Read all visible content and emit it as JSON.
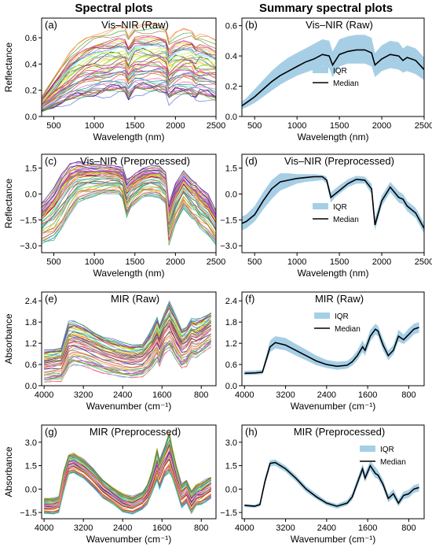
{
  "headers": {
    "left": "Spectral plots",
    "right": "Summary spectral plots"
  },
  "colors": {
    "iqr": "#a6cfe6",
    "median": "#000000"
  },
  "chart_data": [
    {
      "id": "a",
      "type": "line",
      "tag": "(a)",
      "title": "Vis–NIR (Raw)",
      "xlabel": "Wavelength (nm)",
      "ylabel": "Reflectance",
      "xlim": [
        350,
        2500
      ],
      "ylim": [
        0,
        0.75
      ],
      "xticks": [
        "500",
        "1000",
        "1500",
        "2000",
        "2500"
      ],
      "yticks": [
        "0.0",
        "0.2",
        "0.4",
        "0.6"
      ],
      "x": [
        350,
        400,
        500,
        600,
        700,
        800,
        900,
        1000,
        1100,
        1200,
        1300,
        1380,
        1420,
        1500,
        1600,
        1700,
        1800,
        1880,
        1920,
        2000,
        2100,
        2200,
        2250,
        2300,
        2400,
        2500
      ],
      "median": [
        0.08,
        0.1,
        0.14,
        0.19,
        0.24,
        0.28,
        0.31,
        0.34,
        0.37,
        0.39,
        0.41,
        0.4,
        0.33,
        0.42,
        0.44,
        0.44,
        0.44,
        0.42,
        0.35,
        0.4,
        0.42,
        0.41,
        0.38,
        0.4,
        0.38,
        0.34
      ],
      "spread_low": [
        0.03,
        0.04,
        0.06,
        0.08,
        0.1,
        0.12,
        0.13,
        0.14,
        0.15,
        0.16,
        0.17,
        0.16,
        0.11,
        0.17,
        0.17,
        0.17,
        0.17,
        0.16,
        0.1,
        0.14,
        0.15,
        0.14,
        0.12,
        0.13,
        0.12,
        0.1
      ],
      "spread_high": [
        0.15,
        0.2,
        0.3,
        0.4,
        0.5,
        0.56,
        0.6,
        0.63,
        0.65,
        0.67,
        0.69,
        0.68,
        0.62,
        0.7,
        0.71,
        0.71,
        0.7,
        0.68,
        0.6,
        0.65,
        0.67,
        0.66,
        0.62,
        0.64,
        0.62,
        0.58
      ],
      "num_spectra": 60
    },
    {
      "id": "b",
      "type": "area",
      "tag": "(b)",
      "title": "Vis–NIR (Raw)",
      "xlabel": "Wavelength (nm)",
      "ylabel": "",
      "xlim": [
        350,
        2500
      ],
      "ylim": [
        0,
        0.65
      ],
      "xticks": [
        "500",
        "1000",
        "1500",
        "2000",
        "2500"
      ],
      "yticks": [
        "0.0",
        "0.2",
        "0.4",
        "0.6"
      ],
      "legend": [
        "IQR",
        "Median"
      ],
      "legend_position": "center-left",
      "x": [
        350,
        400,
        500,
        600,
        700,
        800,
        900,
        1000,
        1100,
        1200,
        1300,
        1380,
        1420,
        1500,
        1600,
        1700,
        1800,
        1880,
        1920,
        2000,
        2100,
        2200,
        2250,
        2300,
        2400,
        2500
      ],
      "median": [
        0.07,
        0.09,
        0.13,
        0.18,
        0.23,
        0.27,
        0.3,
        0.33,
        0.36,
        0.38,
        0.41,
        0.4,
        0.34,
        0.41,
        0.43,
        0.44,
        0.44,
        0.42,
        0.34,
        0.38,
        0.41,
        0.4,
        0.37,
        0.39,
        0.37,
        0.31
      ],
      "q1": [
        0.05,
        0.06,
        0.09,
        0.13,
        0.17,
        0.21,
        0.24,
        0.27,
        0.29,
        0.31,
        0.33,
        0.32,
        0.26,
        0.33,
        0.35,
        0.35,
        0.35,
        0.33,
        0.26,
        0.3,
        0.32,
        0.31,
        0.29,
        0.3,
        0.28,
        0.24
      ],
      "q3": [
        0.1,
        0.12,
        0.18,
        0.24,
        0.3,
        0.35,
        0.39,
        0.42,
        0.45,
        0.48,
        0.51,
        0.5,
        0.43,
        0.51,
        0.53,
        0.54,
        0.54,
        0.52,
        0.42,
        0.47,
        0.5,
        0.49,
        0.45,
        0.47,
        0.45,
        0.39
      ]
    },
    {
      "id": "c",
      "type": "line",
      "tag": "(c)",
      "title": "Vis–NIR (Preprocessed)",
      "xlabel": "Wavelength (nm)",
      "ylabel": "Reflectance",
      "xlim": [
        350,
        2500
      ],
      "ylim": [
        -3.4,
        2.3
      ],
      "xticks": [
        "500",
        "1000",
        "1500",
        "2000",
        "2500"
      ],
      "yticks": [
        "−3.0",
        "−1.5",
        "0.0",
        "1.5"
      ],
      "x": [
        350,
        400,
        500,
        600,
        700,
        800,
        900,
        1000,
        1100,
        1200,
        1300,
        1350,
        1400,
        1450,
        1500,
        1600,
        1700,
        1800,
        1880,
        1920,
        2000,
        2100,
        2200,
        2250,
        2300,
        2400,
        2500
      ],
      "median": [
        -1.8,
        -1.7,
        -1.2,
        -0.5,
        0.3,
        0.7,
        0.8,
        0.9,
        0.95,
        1.0,
        1.0,
        0.8,
        -0.2,
        0.0,
        0.3,
        0.7,
        0.9,
        0.8,
        0.4,
        -1.8,
        -0.5,
        0.4,
        -0.2,
        -0.3,
        -0.8,
        -1.2,
        -2.0
      ],
      "spread_low": [
        -2.9,
        -2.8,
        -2.6,
        -2.0,
        -1.2,
        -0.5,
        -0.3,
        -0.1,
        0.0,
        0.0,
        0.0,
        -0.3,
        -1.3,
        -0.8,
        -0.6,
        -0.2,
        -0.1,
        -0.2,
        -0.6,
        -3.0,
        -1.8,
        -0.8,
        -1.4,
        -1.6,
        -2.0,
        -2.4,
        -2.9
      ],
      "spread_high": [
        -0.5,
        -0.3,
        0.3,
        1.2,
        1.8,
        1.9,
        1.8,
        1.7,
        1.7,
        1.7,
        1.6,
        1.5,
        0.8,
        1.0,
        1.2,
        1.5,
        1.6,
        1.6,
        1.3,
        -0.5,
        0.6,
        1.3,
        0.8,
        0.7,
        0.4,
        0.0,
        -1.0
      ],
      "num_spectra": 60
    },
    {
      "id": "d",
      "type": "area",
      "tag": "(d)",
      "title": "Vis–NIR (Preprocessed)",
      "xlabel": "Wavelength (nm)",
      "ylabel": "",
      "xlim": [
        350,
        2500
      ],
      "ylim": [
        -3.4,
        2.3
      ],
      "xticks": [
        "500",
        "1000",
        "1500",
        "2000",
        "2500"
      ],
      "yticks": [
        "−3.0",
        "−1.5",
        "0.0",
        "1.5"
      ],
      "legend": [
        "IQR",
        "Median"
      ],
      "legend_position": "center-left",
      "x": [
        350,
        400,
        500,
        600,
        700,
        800,
        900,
        1000,
        1100,
        1200,
        1300,
        1350,
        1400,
        1450,
        1500,
        1600,
        1700,
        1800,
        1880,
        1920,
        2000,
        2100,
        2200,
        2250,
        2300,
        2400,
        2500
      ],
      "median": [
        -1.7,
        -1.6,
        -1.2,
        -0.4,
        0.3,
        0.7,
        0.8,
        0.9,
        0.95,
        1.0,
        1.0,
        0.8,
        -0.2,
        0.0,
        0.2,
        0.6,
        0.85,
        0.8,
        0.3,
        -1.8,
        -0.4,
        0.4,
        -0.2,
        -0.3,
        -0.7,
        -1.1,
        -2.0
      ],
      "q1": [
        -2.1,
        -2.0,
        -1.6,
        -0.9,
        -0.3,
        0.2,
        0.4,
        0.6,
        0.7,
        0.75,
        0.8,
        0.6,
        -0.5,
        -0.2,
        0.0,
        0.4,
        0.6,
        0.6,
        0.0,
        -2.1,
        -0.7,
        0.1,
        -0.5,
        -0.6,
        -1.0,
        -1.4,
        -2.3
      ],
      "q3": [
        -1.3,
        -1.2,
        -0.7,
        0.1,
        0.8,
        1.2,
        1.2,
        1.15,
        1.15,
        1.15,
        1.1,
        1.0,
        0.1,
        0.3,
        0.5,
        0.85,
        1.05,
        1.0,
        0.6,
        -1.4,
        -0.1,
        0.7,
        0.15,
        0.0,
        -0.4,
        -0.8,
        -1.7
      ]
    },
    {
      "id": "e",
      "type": "line",
      "tag": "(e)",
      "title": "MIR (Raw)",
      "xlabel": "Wavenumber (cm⁻¹)",
      "ylabel": "Absorbance",
      "xlim": [
        4050,
        500
      ],
      "ylim": [
        0,
        2.65
      ],
      "x_reversed": true,
      "xticks": [
        "4000",
        "3200",
        "2400",
        "1600",
        "800"
      ],
      "yticks": [
        "0.0",
        "0.6",
        "1.2",
        "1.8",
        "2.4"
      ],
      "x": [
        4000,
        3800,
        3650,
        3500,
        3400,
        3200,
        3000,
        2800,
        2600,
        2400,
        2200,
        2000,
        1900,
        1800,
        1700,
        1650,
        1550,
        1450,
        1400,
        1300,
        1200,
        1100,
        1000,
        900,
        800,
        700,
        600
      ],
      "median": [
        0.35,
        0.36,
        0.38,
        1.1,
        1.2,
        1.15,
        1.0,
        0.85,
        0.7,
        0.6,
        0.55,
        0.58,
        0.7,
        0.9,
        1.2,
        1.0,
        1.4,
        1.55,
        1.5,
        1.2,
        0.9,
        1.0,
        1.3,
        1.25,
        1.4,
        1.55,
        1.7
      ],
      "spread_low": [
        0.1,
        0.12,
        0.12,
        0.5,
        0.6,
        0.55,
        0.45,
        0.35,
        0.3,
        0.25,
        0.22,
        0.25,
        0.35,
        0.5,
        0.7,
        0.55,
        0.9,
        1.0,
        0.95,
        0.7,
        0.5,
        0.55,
        0.8,
        0.8,
        0.9,
        1.0,
        1.1
      ],
      "spread_high": [
        1.0,
        1.05,
        1.1,
        1.8,
        1.8,
        1.7,
        1.55,
        1.4,
        1.3,
        1.2,
        1.15,
        1.2,
        1.4,
        1.6,
        1.9,
        1.7,
        2.1,
        2.4,
        2.2,
        1.9,
        1.6,
        1.7,
        1.9,
        1.85,
        1.9,
        2.0,
        2.1
      ],
      "num_spectra": 60
    },
    {
      "id": "f",
      "type": "area",
      "tag": "(f)",
      "title": "MIR (Raw)",
      "xlabel": "Wavenumber (cm⁻¹)",
      "ylabel": "",
      "xlim": [
        4050,
        500
      ],
      "ylim": [
        0,
        2.65
      ],
      "x_reversed": true,
      "xticks": [
        "4000",
        "3200",
        "2400",
        "1600",
        "800"
      ],
      "yticks": [
        "0.0",
        "0.6",
        "1.2",
        "1.8",
        "2.4"
      ],
      "legend": [
        "IQR",
        "Median"
      ],
      "legend_position": "upper-center",
      "x": [
        4000,
        3800,
        3650,
        3500,
        3400,
        3200,
        3000,
        2800,
        2600,
        2400,
        2200,
        2000,
        1900,
        1800,
        1700,
        1650,
        1550,
        1450,
        1400,
        1300,
        1200,
        1100,
        1000,
        900,
        800,
        700,
        600
      ],
      "median": [
        0.35,
        0.36,
        0.38,
        1.1,
        1.22,
        1.15,
        1.0,
        0.85,
        0.7,
        0.6,
        0.55,
        0.58,
        0.68,
        0.85,
        1.1,
        1.0,
        1.4,
        1.6,
        1.55,
        1.15,
        0.85,
        1.0,
        1.4,
        1.3,
        1.45,
        1.6,
        1.65
      ],
      "q1": [
        0.3,
        0.31,
        0.33,
        0.95,
        1.05,
        1.0,
        0.85,
        0.72,
        0.58,
        0.5,
        0.45,
        0.48,
        0.57,
        0.72,
        0.95,
        0.85,
        1.25,
        1.45,
        1.4,
        1.0,
        0.72,
        0.88,
        1.25,
        1.18,
        1.3,
        1.45,
        1.5
      ],
      "q3": [
        0.42,
        0.43,
        0.45,
        1.28,
        1.4,
        1.35,
        1.18,
        1.02,
        0.85,
        0.73,
        0.68,
        0.7,
        0.82,
        1.0,
        1.28,
        1.15,
        1.58,
        1.75,
        1.7,
        1.32,
        1.0,
        1.15,
        1.58,
        1.45,
        1.62,
        1.75,
        1.8
      ]
    },
    {
      "id": "g",
      "type": "line",
      "tag": "(g)",
      "title": "MIR (Preprocessed)",
      "xlabel": "Wavenumber (cm⁻¹)",
      "ylabel": "Absorbance",
      "xlim": [
        4050,
        500
      ],
      "ylim": [
        -1.9,
        4.1
      ],
      "x_reversed": true,
      "xticks": [
        "4000",
        "3200",
        "2400",
        "1600",
        "800"
      ],
      "yticks": [
        "−1.5",
        "0.0",
        "1.5",
        "3.0"
      ],
      "x": [
        4000,
        3800,
        3700,
        3600,
        3500,
        3400,
        3200,
        3000,
        2800,
        2600,
        2400,
        2200,
        2000,
        1900,
        1800,
        1700,
        1650,
        1550,
        1450,
        1400,
        1300,
        1200,
        1100,
        1000,
        900,
        800,
        700,
        600
      ],
      "median": [
        -1.1,
        -1.1,
        -1.0,
        0.5,
        1.6,
        1.7,
        1.3,
        0.7,
        0.0,
        -0.5,
        -0.9,
        -1.1,
        -0.8,
        -0.4,
        0.4,
        1.3,
        0.8,
        1.6,
        1.9,
        1.5,
        0.6,
        -0.5,
        -0.2,
        -0.9,
        -0.4,
        -0.3,
        -0.1,
        0.1
      ],
      "spread_low": [
        -1.6,
        -1.6,
        -1.5,
        -0.2,
        0.9,
        1.0,
        0.7,
        0.1,
        -0.6,
        -1.0,
        -1.5,
        -1.6,
        -1.3,
        -1.0,
        -0.3,
        0.5,
        0.0,
        0.8,
        1.0,
        0.7,
        -0.2,
        -1.2,
        -0.9,
        -1.6,
        -1.1,
        -1.0,
        -0.8,
        -0.6
      ],
      "spread_high": [
        -0.6,
        -0.6,
        -0.5,
        1.2,
        2.2,
        2.3,
        1.9,
        1.3,
        0.6,
        0.1,
        -0.3,
        -0.5,
        -0.2,
        0.3,
        1.2,
        2.6,
        1.8,
        2.7,
        3.7,
        2.8,
        1.4,
        0.3,
        0.6,
        -0.1,
        0.3,
        0.4,
        0.6,
        0.8
      ],
      "num_spectra": 60
    },
    {
      "id": "h",
      "type": "area",
      "tag": "(h)",
      "title": "MIR (Preprocessed)",
      "xlabel": "Wavenumber (cm⁻¹)",
      "ylabel": "",
      "xlim": [
        4050,
        500
      ],
      "ylim": [
        -1.9,
        4.1
      ],
      "x_reversed": true,
      "xticks": [
        "4000",
        "3200",
        "2400",
        "1600",
        "800"
      ],
      "yticks": [
        "−1.5",
        "0.0",
        "1.5",
        "3.0"
      ],
      "legend": [
        "IQR",
        "Median"
      ],
      "legend_position": "upper-right",
      "x": [
        4000,
        3800,
        3700,
        3600,
        3500,
        3400,
        3200,
        3000,
        2800,
        2600,
        2400,
        2200,
        2000,
        1900,
        1800,
        1700,
        1650,
        1550,
        1450,
        1400,
        1300,
        1200,
        1100,
        1000,
        900,
        800,
        700,
        600
      ],
      "median": [
        -1.05,
        -1.1,
        -1.0,
        0.5,
        1.65,
        1.7,
        1.3,
        0.7,
        0.0,
        -0.5,
        -0.9,
        -1.1,
        -0.9,
        -0.5,
        0.4,
        1.3,
        0.7,
        1.5,
        1.0,
        0.9,
        0.3,
        -0.6,
        -0.3,
        -0.9,
        -0.4,
        -0.3,
        0.0,
        0.1
      ],
      "q1": [
        -1.15,
        -1.2,
        -1.1,
        0.3,
        1.45,
        1.5,
        1.1,
        0.5,
        -0.2,
        -0.65,
        -1.05,
        -1.25,
        -1.05,
        -0.7,
        0.15,
        1.0,
        0.45,
        1.2,
        0.7,
        0.65,
        0.05,
        -0.85,
        -0.55,
        -1.1,
        -0.65,
        -0.55,
        -0.25,
        -0.15
      ],
      "q3": [
        -0.95,
        -1.0,
        -0.85,
        0.75,
        1.85,
        1.9,
        1.5,
        0.9,
        0.2,
        -0.3,
        -0.75,
        -0.95,
        -0.7,
        -0.25,
        0.7,
        1.6,
        1.05,
        1.8,
        1.4,
        1.2,
        0.6,
        -0.35,
        0.0,
        -0.65,
        -0.15,
        -0.05,
        0.25,
        0.35
      ]
    }
  ]
}
